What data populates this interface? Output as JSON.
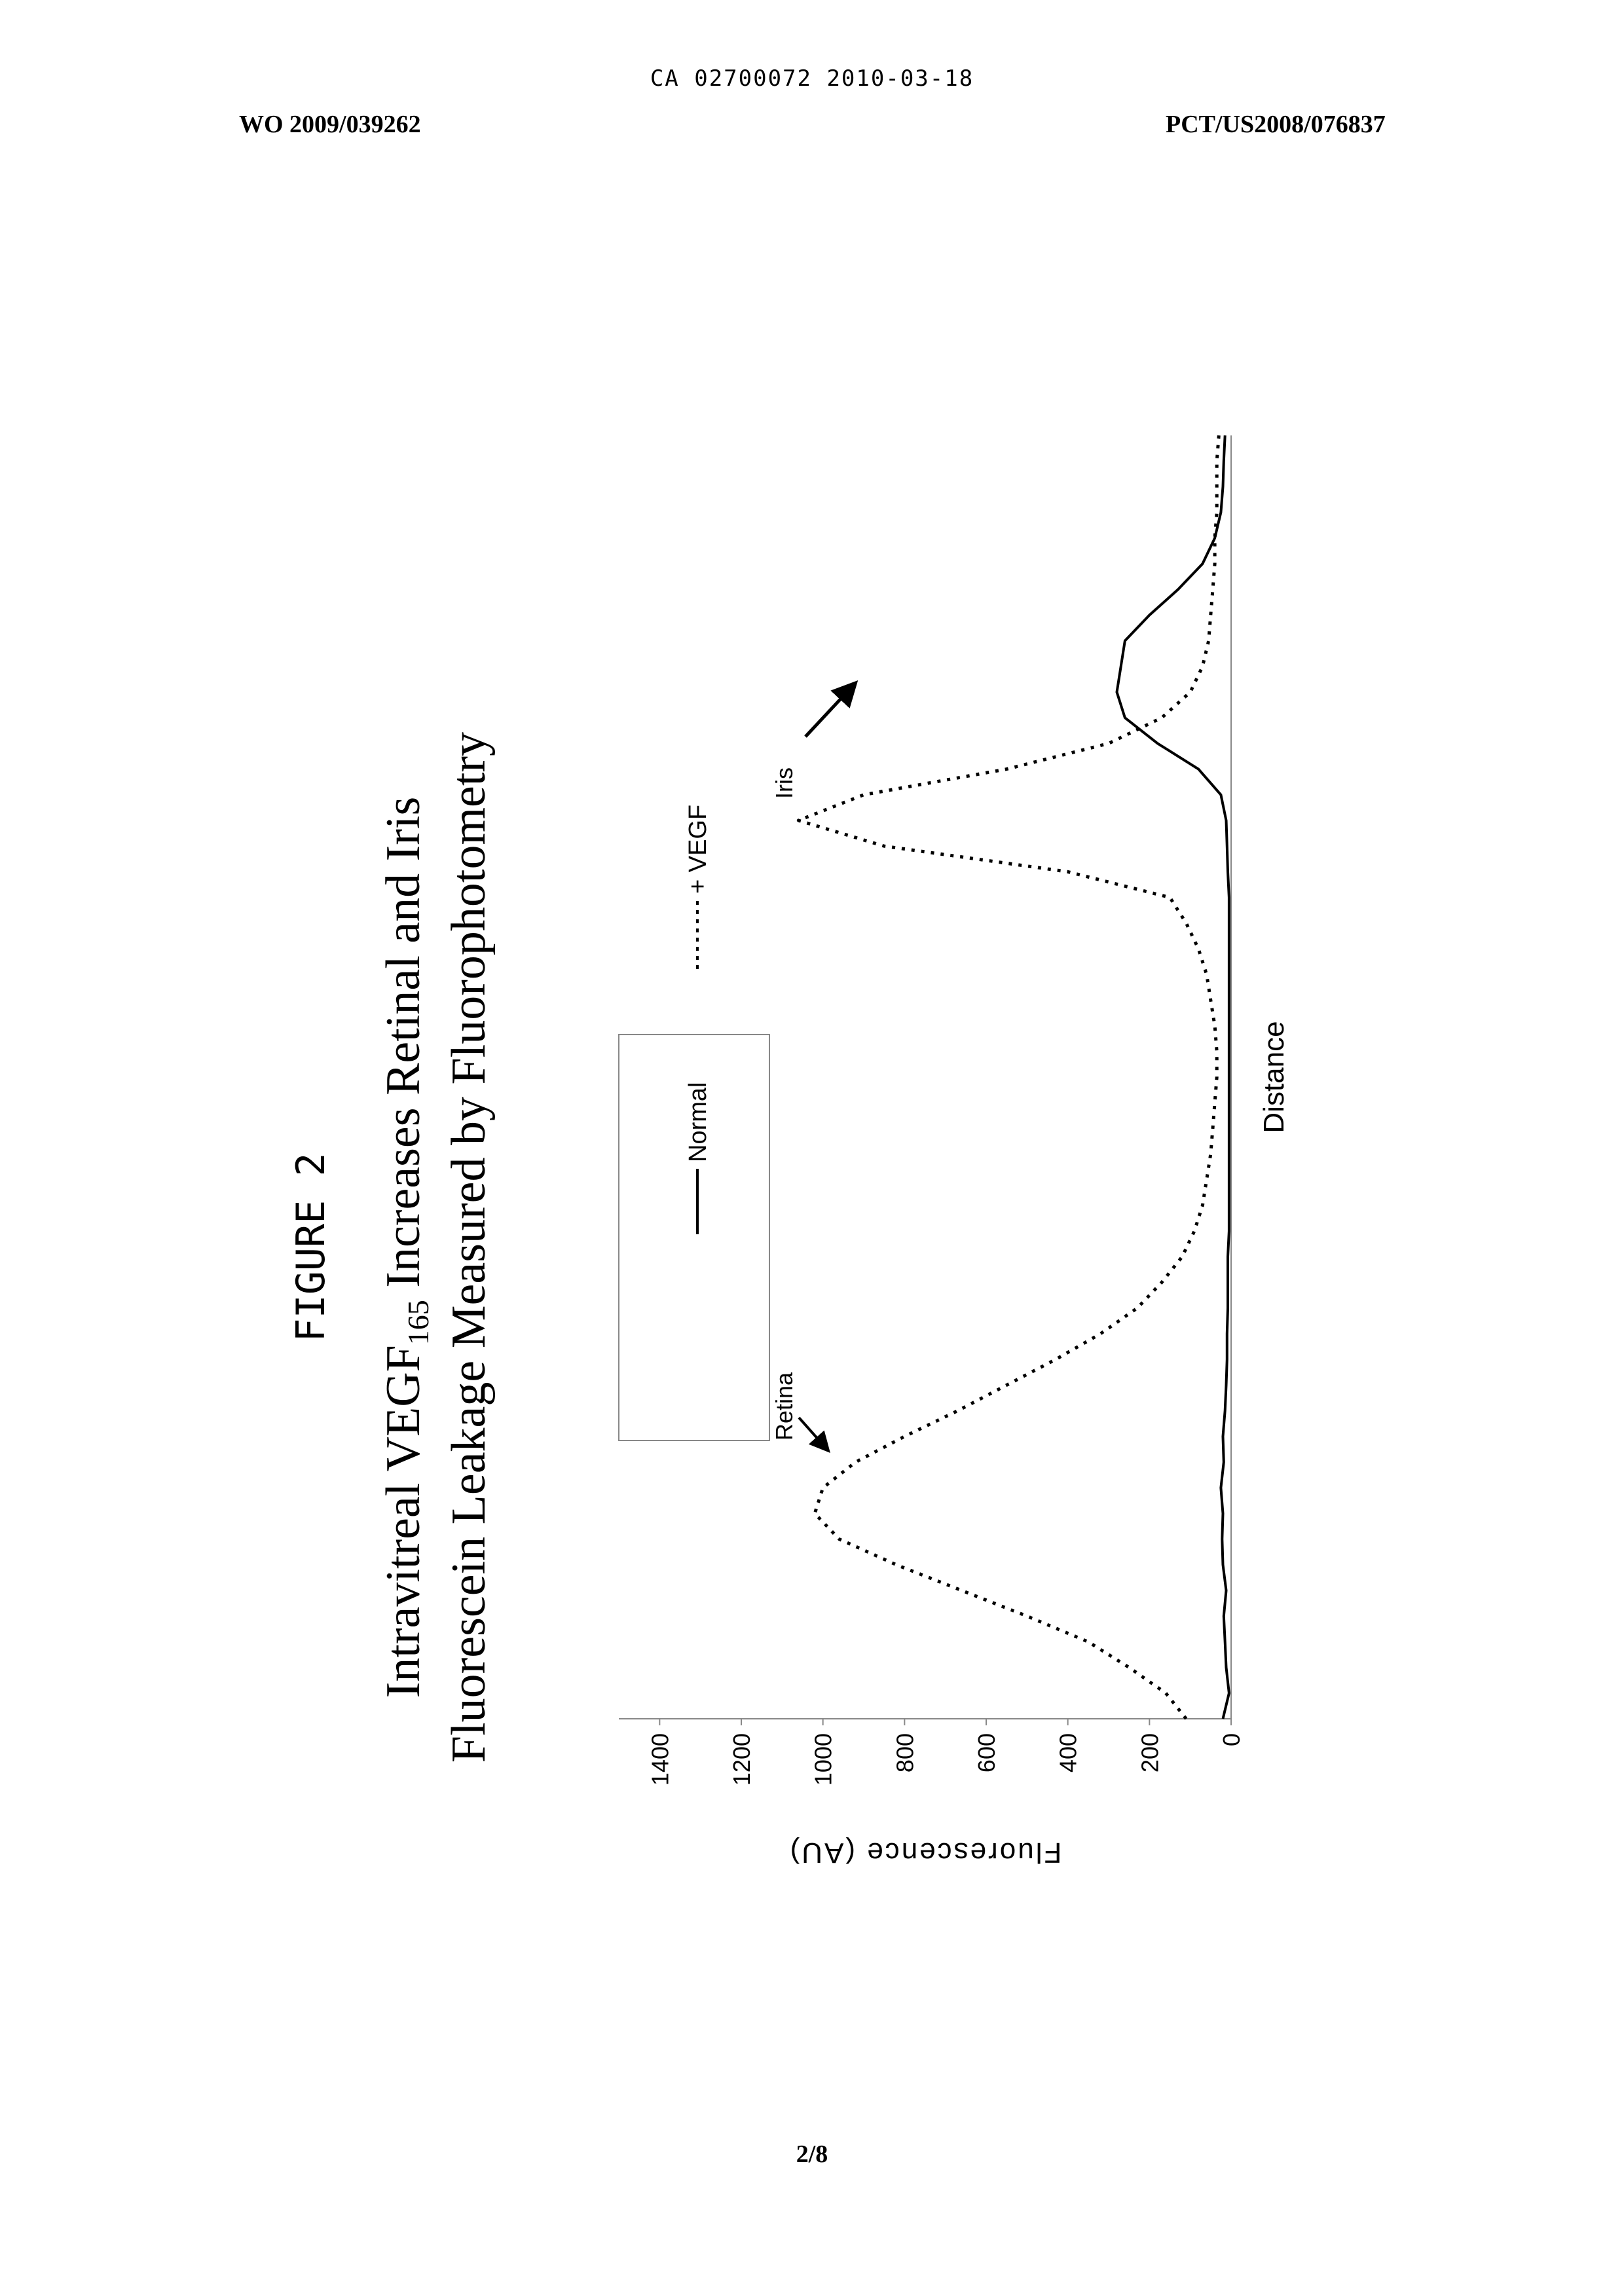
{
  "header": {
    "center": "CA 02700072 2010-03-18",
    "left": "WO 2009/039262",
    "right": "PCT/US2008/076837"
  },
  "figure": {
    "label": "FIGURE 2",
    "title_line1_pre": "Intravitreal VEGF",
    "title_line1_sub": "165",
    "title_line1_post": " Increases Retinal and Iris",
    "title_line2": "Fluorescein Leakage Measured by Fluorophotometry"
  },
  "chart_data": {
    "type": "line",
    "orientation": "rotated 90 degrees counter-clockwise",
    "title": "Intravitreal VEGF165 Increases Retinal and Iris Fluorescein Leakage Measured by Fluorophotometry",
    "xlabel": "Distance",
    "ylabel": "Fluorescence (AU)",
    "ylim": [
      0,
      1500
    ],
    "yticks": [
      0,
      200,
      400,
      600,
      800,
      1000,
      1200,
      1400
    ],
    "x": [
      0,
      2,
      4,
      6,
      8,
      10,
      12,
      14,
      16,
      18,
      20,
      22,
      24,
      26,
      28,
      30,
      32,
      34,
      36,
      38,
      40,
      42,
      44,
      46,
      48,
      50,
      52,
      54,
      56,
      58,
      60,
      62,
      64,
      66,
      68,
      70,
      72,
      74,
      76,
      78,
      80,
      82,
      84,
      86,
      88,
      90,
      92,
      94,
      96,
      98,
      100
    ],
    "series": [
      {
        "name": "Normal",
        "style": "solid",
        "values": [
          20,
          5,
          12,
          15,
          18,
          12,
          20,
          22,
          20,
          25,
          18,
          20,
          15,
          12,
          10,
          10,
          8,
          8,
          8,
          5,
          5,
          5,
          5,
          5,
          5,
          5,
          5,
          5,
          5,
          5,
          5,
          5,
          5,
          8,
          10,
          12,
          25,
          80,
          180,
          260,
          280,
          270,
          260,
          200,
          130,
          70,
          40,
          25,
          20,
          18,
          15
        ]
      },
      {
        "name": "+ VEGF",
        "style": "dotted",
        "values": [
          110,
          160,
          250,
          350,
          500,
          660,
          820,
          960,
          1020,
          1000,
          920,
          800,
          670,
          550,
          430,
          320,
          230,
          170,
          120,
          90,
          70,
          60,
          50,
          45,
          40,
          35,
          35,
          40,
          50,
          60,
          80,
          110,
          150,
          400,
          850,
          1060,
          900,
          550,
          300,
          170,
          100,
          70,
          55,
          50,
          45,
          40,
          40,
          35,
          35,
          35,
          30
        ]
      }
    ],
    "legend": [
      "Normal",
      "+ VEGF"
    ],
    "annotations": [
      "Retina",
      "Iris"
    ]
  }
}
